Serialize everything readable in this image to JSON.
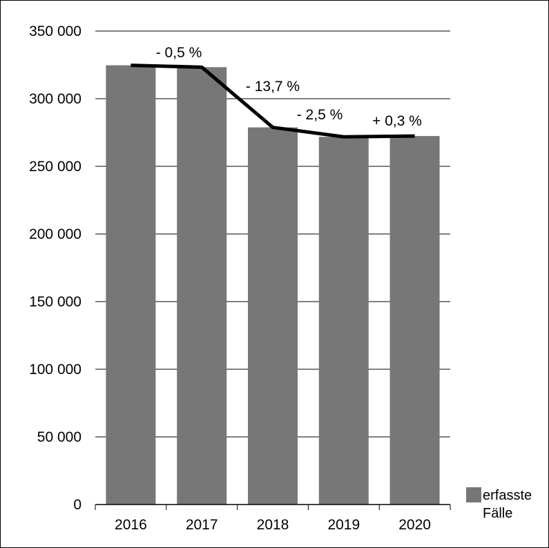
{
  "chart_data": {
    "type": "bar",
    "categories": [
      "2016",
      "2017",
      "2018",
      "2019",
      "2020"
    ],
    "series": [
      {
        "name": "erfasste Fälle",
        "values": [
          324700,
          323300,
          278800,
          271800,
          272400
        ],
        "color": "#777777"
      }
    ],
    "trend_line": {
      "values": [
        324700,
        323300,
        278800,
        271800,
        272400
      ],
      "color": "#000000"
    },
    "change_labels": [
      "- 0,5 %",
      "- 13,7 %",
      "- 2,5 %",
      "+ 0,3 %"
    ],
    "y_ticks": [
      0,
      50000,
      100000,
      150000,
      200000,
      250000,
      300000,
      350000
    ],
    "y_tick_labels": [
      "0",
      "50 000",
      "100 000",
      "150 000",
      "200 000",
      "250 000",
      "300 000",
      "350 000"
    ],
    "ylim": [
      0,
      350000
    ],
    "grid": true,
    "legend": {
      "position": "bottom-right",
      "lines": [
        "erfasste",
        "Fälle"
      ]
    }
  }
}
